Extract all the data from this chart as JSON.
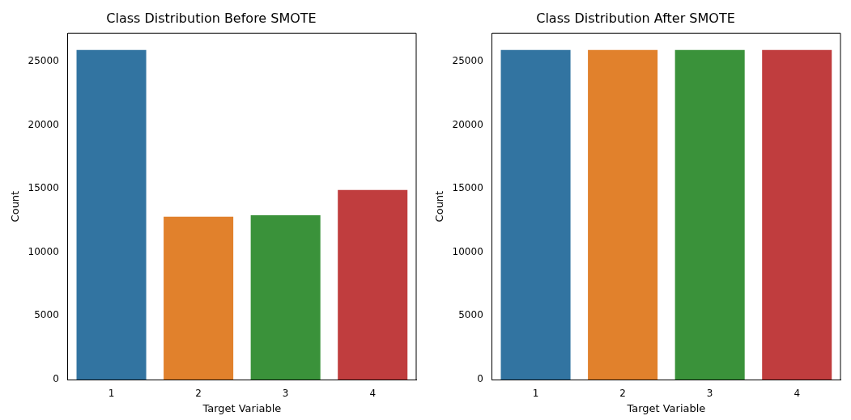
{
  "chart_data": [
    {
      "type": "bar",
      "title": "Class Distribution Before SMOTE",
      "xlabel": "Target Variable",
      "ylabel": "Count",
      "categories": [
        "1",
        "2",
        "3",
        "4"
      ],
      "values": [
        25900,
        12800,
        12900,
        14900
      ],
      "colors": [
        "#3274a1",
        "#e1812c",
        "#3a923a",
        "#c03d3e"
      ],
      "ylim": [
        0,
        27200
      ],
      "yticks": [
        0,
        5000,
        10000,
        15000,
        20000,
        25000
      ],
      "grid": false,
      "legend": false
    },
    {
      "type": "bar",
      "title": "Class Distribution After SMOTE",
      "xlabel": "Target Variable",
      "ylabel": "Count",
      "categories": [
        "1",
        "2",
        "3",
        "4"
      ],
      "values": [
        25900,
        25900,
        25900,
        25900
      ],
      "colors": [
        "#3274a1",
        "#e1812c",
        "#3a923a",
        "#c03d3e"
      ],
      "ylim": [
        0,
        27200
      ],
      "yticks": [
        0,
        5000,
        10000,
        15000,
        20000,
        25000
      ],
      "grid": false,
      "legend": false
    }
  ]
}
